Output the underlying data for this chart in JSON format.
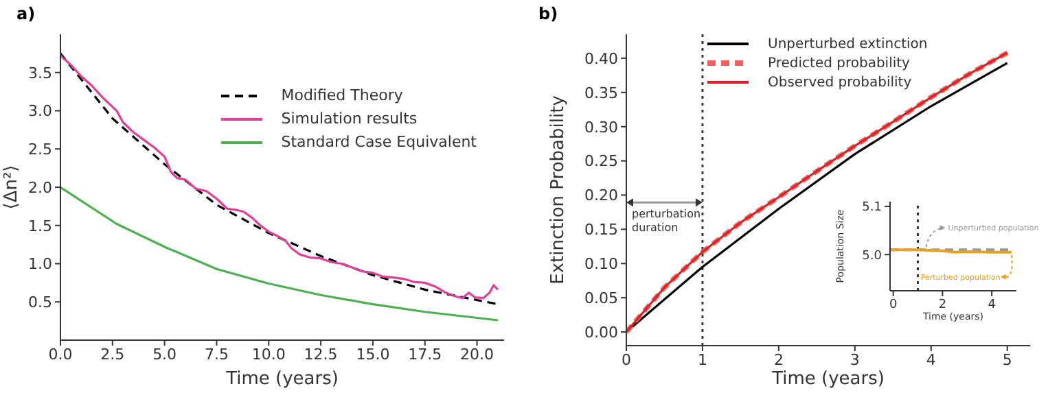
{
  "chart_data": [
    {
      "type": "line",
      "title": "a)",
      "xlabel": "Time (years)",
      "ylabel": "⟨Δn²⟩",
      "legend": "top right",
      "xlim": [
        0,
        21.3
      ],
      "ylim": [
        0,
        4.0
      ],
      "xticks": [
        {
          "value": 0,
          "label": "0.0"
        },
        {
          "value": 2.5,
          "label": "2.5"
        },
        {
          "value": 5,
          "label": "5.0"
        },
        {
          "value": 7.5,
          "label": "7.5"
        },
        {
          "value": 10,
          "label": "10.0"
        },
        {
          "value": 12.5,
          "label": "12.5"
        },
        {
          "value": 15,
          "label": "15.0"
        },
        {
          "value": 17.5,
          "label": "17.5"
        },
        {
          "value": 20,
          "label": "20.0"
        }
      ],
      "yticks": [
        0.5,
        {
          "value": 1,
          "label": "1.0"
        },
        1.5,
        {
          "value": 2,
          "label": "2.0"
        },
        2.5,
        {
          "value": 3,
          "label": "3.0"
        },
        3.5
      ],
      "series": [
        {
          "name": "Modified Theory",
          "color": "#000000",
          "line_style": "dashed",
          "x": [
            0,
            2.5,
            5,
            7.5,
            10,
            12.5,
            15,
            17.5,
            21
          ],
          "values": [
            3.75,
            2.9,
            2.3,
            1.77,
            1.4,
            1.1,
            0.85,
            0.66,
            0.47
          ]
        },
        {
          "name": "Simulation results",
          "color": "#e0409a",
          "line_style": "solid",
          "x": [
            0,
            0.5,
            1,
            1.5,
            2,
            2.5,
            2.7,
            3,
            3.5,
            4,
            4.5,
            5,
            5.3,
            5.6,
            6,
            6.5,
            7,
            7.5,
            8,
            8.5,
            8.8,
            9.2,
            9.6,
            10,
            10.5,
            10.8,
            11.1,
            11.5,
            12,
            12.5,
            13,
            13.5,
            14,
            14.5,
            15,
            15.5,
            16,
            16.5,
            17,
            17.5,
            18,
            18.5,
            19,
            19.3,
            19.6,
            19.9,
            20.3,
            20.6,
            20.8,
            21
          ],
          "values": [
            3.72,
            3.6,
            3.45,
            3.33,
            3.18,
            3.05,
            3.0,
            2.85,
            2.72,
            2.62,
            2.52,
            2.4,
            2.2,
            2.12,
            2.1,
            1.98,
            1.95,
            1.85,
            1.72,
            1.7,
            1.68,
            1.6,
            1.5,
            1.42,
            1.35,
            1.3,
            1.2,
            1.12,
            1.08,
            1.07,
            1.02,
            1.0,
            0.95,
            0.9,
            0.88,
            0.83,
            0.82,
            0.8,
            0.76,
            0.75,
            0.7,
            0.62,
            0.57,
            0.55,
            0.62,
            0.56,
            0.55,
            0.62,
            0.72,
            0.66
          ]
        },
        {
          "name": "Standard Case Equivalent",
          "color": "#4caf50",
          "line_style": "solid",
          "x": [
            0,
            2.7,
            5,
            7.5,
            10,
            12.5,
            15,
            17.5,
            21
          ],
          "values": [
            2.0,
            1.52,
            1.22,
            0.93,
            0.74,
            0.59,
            0.47,
            0.37,
            0.26
          ]
        }
      ]
    },
    {
      "type": "line",
      "title": "b)",
      "xlabel": "Time  (years)",
      "ylabel": "Extinction Probability",
      "legend": "top",
      "xlim": [
        0,
        5.3
      ],
      "ylim": [
        -0.02,
        0.435
      ],
      "xticks": [
        0,
        1,
        2,
        3,
        4,
        5
      ],
      "yticks": [
        {
          "value": 0,
          "label": "0.00"
        },
        {
          "value": 0.05,
          "label": "0.05"
        },
        {
          "value": 0.1,
          "label": "0.10"
        },
        {
          "value": 0.15,
          "label": "0.15"
        },
        {
          "value": 0.2,
          "label": "0.20"
        },
        {
          "value": 0.25,
          "label": "0.25"
        },
        {
          "value": 0.3,
          "label": "0.30"
        },
        {
          "value": 0.35,
          "label": "0.35"
        },
        {
          "value": 0.4,
          "label": "0.40"
        }
      ],
      "ref_lines": [
        {
          "axis": "x",
          "value": 1,
          "color": "#333333",
          "line_style": "dotted"
        }
      ],
      "annotations": [
        "perturbation duration"
      ],
      "series": [
        {
          "name": "Unperturbed extinction",
          "color": "#000000",
          "line_style": "solid",
          "x": [
            0,
            1,
            2,
            3,
            4,
            5
          ],
          "values": [
            0,
            0.095,
            0.18,
            0.26,
            0.33,
            0.393
          ]
        },
        {
          "name": "Predicted probability",
          "color": "#f06060",
          "line_style": "dashed",
          "x": [
            0,
            0.5,
            1,
            1.5,
            2,
            2.5,
            3,
            3.5,
            4,
            4.5,
            5
          ],
          "values": [
            0,
            0.065,
            0.117,
            0.16,
            0.197,
            0.235,
            0.272,
            0.307,
            0.343,
            0.377,
            0.408
          ]
        },
        {
          "name": "Observed probability",
          "color": "#e02020",
          "line_style": "solid",
          "x": [
            0,
            0.5,
            1,
            1.5,
            2,
            2.5,
            3,
            3.5,
            4,
            4.5,
            5
          ],
          "values": [
            0,
            0.065,
            0.117,
            0.16,
            0.197,
            0.235,
            0.272,
            0.307,
            0.343,
            0.377,
            0.408
          ]
        }
      ]
    },
    {
      "type": "line",
      "xlabel": "Time (years)",
      "ylabel": "Population Size",
      "xlim": [
        -0.13,
        5.0
      ],
      "ylim": [
        4.925,
        5.11
      ],
      "xticks": [
        0,
        2,
        4
      ],
      "yticks": [
        {
          "value": 5,
          "label": "5.0"
        },
        5.1
      ],
      "ref_lines": [
        {
          "axis": "x",
          "value": 1,
          "color": "#333333",
          "line_style": "dotted"
        }
      ],
      "series": [
        {
          "name": "Unperturbed population",
          "color": "#999999",
          "line_style": "dashed",
          "x": [
            -0.13,
            1,
            2,
            3,
            4,
            4.8
          ],
          "values": [
            5.01,
            5.01,
            5.01,
            5.01,
            5.01,
            5.01
          ]
        },
        {
          "name": "Perturbed population",
          "color": "#e8a020",
          "line_style": "solid",
          "x": [
            -0.13,
            1,
            2,
            2.5,
            3,
            4,
            4.8
          ],
          "values": [
            5.01,
            5.01,
            5.008,
            5.005,
            5.006,
            5.005,
            5.005
          ]
        }
      ]
    }
  ]
}
